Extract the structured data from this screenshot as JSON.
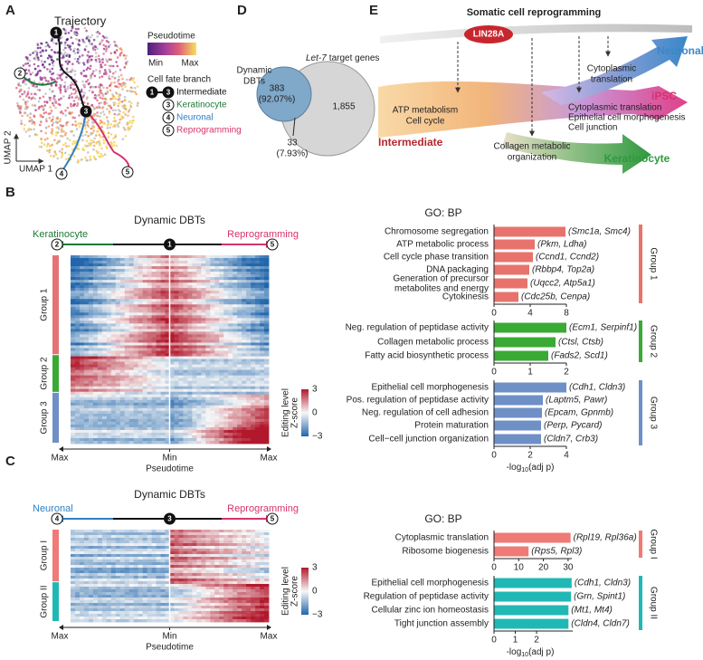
{
  "figure": {
    "A": {
      "letter": "A",
      "title": "Trajectory",
      "umap_x": "UMAP 1",
      "umap_y": "UMAP 2",
      "pseudotime": "Pseudotime",
      "min": "Min",
      "max": "Max",
      "branch_title": "Cell fate branch",
      "nodes": [
        "1",
        "2",
        "3",
        "4",
        "5"
      ],
      "branches": [
        "Intermediate",
        "Keratinocyte",
        "Neuronal",
        "Reprogramming"
      ]
    },
    "D": {
      "letter": "D",
      "set_a": [
        "Dynamic",
        "DBTs"
      ],
      "set_b": [
        "Let-7",
        "target genes"
      ],
      "only_a": "383",
      "only_a_pct": "(92.07%)",
      "only_b": "1,855",
      "overlap": "33",
      "overlap_pct": "(7.93%)"
    },
    "E": {
      "letter": "E",
      "title": "Somatic cell reprogramming",
      "factor": "LIN28A",
      "start": "Intermediate",
      "start_terms": [
        "ATP metabolism",
        "Cell cycle"
      ],
      "fates": [
        "Neuronal",
        "iPSC",
        "Keratinocyte"
      ],
      "neuronal_terms": [
        "Cytoplasmic",
        "translation"
      ],
      "ipsc_terms": [
        "Cytoplasmic translation",
        "Epithelial cell morphogenesis",
        "Cell junction"
      ],
      "keratinocyte_terms": [
        "Collagen metabolic",
        "organization"
      ]
    },
    "B": {
      "letter": "B",
      "title": "Dynamic DBTs",
      "left_fate": "Keratinocyte",
      "right_fate": "Reprogramming",
      "nodes": [
        "2",
        "1",
        "5"
      ],
      "groups": [
        "Group 1",
        "Group 2",
        "Group 3"
      ],
      "axis": [
        "Max",
        "Min",
        "Max"
      ],
      "axis_title": "Pseudotime",
      "colorbar_title": [
        "Editing level",
        "Z-score"
      ],
      "colorbar_lim": [
        -3,
        3
      ],
      "colorbar_ticks": [
        3,
        0,
        {
          "value": -3,
          "label": "−3"
        }
      ]
    },
    "C": {
      "letter": "C",
      "title": "Dynamic DBTs",
      "left_fate": "Neuronal",
      "right_fate": "Reprogramming",
      "nodes": [
        "4",
        "3",
        "5"
      ],
      "groups": [
        "Group I",
        "Group II"
      ],
      "axis": [
        "Max",
        "Min",
        "Max"
      ],
      "axis_title": "Pseudotime",
      "colorbar_title": [
        "Editing level",
        "Z-score"
      ],
      "colorbar_lim": [
        -3,
        3
      ],
      "colorbar_ticks": [
        3,
        0,
        {
          "value": -3,
          "label": "−3"
        }
      ]
    }
  },
  "chart_data": [
    {
      "type": "bar",
      "orientation": "horizontal",
      "title": "GO: BP",
      "group": "Group 1",
      "color": "#e8736c",
      "categories": [
        "Chromosome segregation",
        "ATP metabolic process",
        "Cell cycle phase transition",
        "DNA packaging",
        "Generation of precursor\nmetabolites and energy",
        "Cytokinesis"
      ],
      "values": [
        7.9,
        4.5,
        4.3,
        3.9,
        3.7,
        2.7
      ],
      "annotations": [
        "(Smc1a, Smc4)",
        "(Pkm, Ldha)",
        "(Ccnd1, Ccnd2)",
        "(Rbbp4, Top2a)",
        "(Uqcc2, Atp5a1)",
        "(Cdc25b, Cenpa)"
      ],
      "xlim": [
        0,
        8
      ],
      "xticks": [
        0,
        4,
        8
      ]
    },
    {
      "type": "bar",
      "orientation": "horizontal",
      "group": "Group 2",
      "color": "#3aaa35",
      "categories": [
        "Neg. regulation of peptidase activity",
        "Collagen metabolic process",
        "Fatty acid biosynthetic process"
      ],
      "values": [
        2.0,
        1.7,
        1.5
      ],
      "annotations": [
        "(Ecm1, Serpinf1)",
        "(Ctsl, Ctsb)",
        "(Fads2, Scd1)"
      ],
      "xlim": [
        0,
        2
      ],
      "xticks": [
        0,
        1,
        2
      ]
    },
    {
      "type": "bar",
      "orientation": "horizontal",
      "group": "Group 3",
      "color": "#6f8fc7",
      "categories": [
        "Epithelial cell morphogenesis",
        "Pos. regulation of peptidase activity",
        "Neg. regulation of cell adhesion",
        "Protein maturation",
        "Cell−cell junction organization"
      ],
      "values": [
        4.0,
        2.7,
        2.65,
        2.6,
        2.6
      ],
      "annotations": [
        "(Cdh1, Cldn3)",
        "(Laptm5, Pawr)",
        "(Epcam, Gpnmb)",
        "(Perp, Pycard)",
        "(Cldn7, Crb3)"
      ],
      "xlim": [
        0,
        4
      ],
      "xticks": [
        0,
        2,
        4
      ],
      "xlabel": {
        "main": "-log",
        "sub": "10",
        "rest": "(adj p)"
      }
    },
    {
      "type": "bar",
      "orientation": "horizontal",
      "title": "GO: BP",
      "group": "Group I",
      "color": "#ef7a76",
      "categories": [
        "Cytoplasmic translation",
        "Ribosome biogenesis"
      ],
      "values": [
        31,
        14
      ],
      "annotations": [
        "(Rpl19, Rpl36a)",
        "(Rps5, Rpl3)"
      ],
      "xlim": [
        0,
        31.5
      ],
      "xticks": [
        0,
        10,
        20,
        30
      ]
    },
    {
      "type": "bar",
      "orientation": "horizontal",
      "group": "Group II",
      "color": "#20b8b5",
      "categories": [
        "Epithelial cell morphogenesis",
        "Regulation of peptidase activity",
        "Cellular zinc ion homeostasis",
        "Tight junction assembly"
      ],
      "values": [
        3.65,
        3.62,
        3.5,
        3.5
      ],
      "annotations": [
        "(Cdh1, Cldn3)",
        "(Grn, Spint1)",
        "(Mt1, Mt4)",
        "(Cldn4, Cldn7)"
      ],
      "xlim": [
        0,
        3.7
      ],
      "xticks": [
        0,
        1,
        2
      ],
      "xlabel": {
        "main": "-log",
        "sub": "10",
        "rest": "(adj p)"
      }
    }
  ]
}
